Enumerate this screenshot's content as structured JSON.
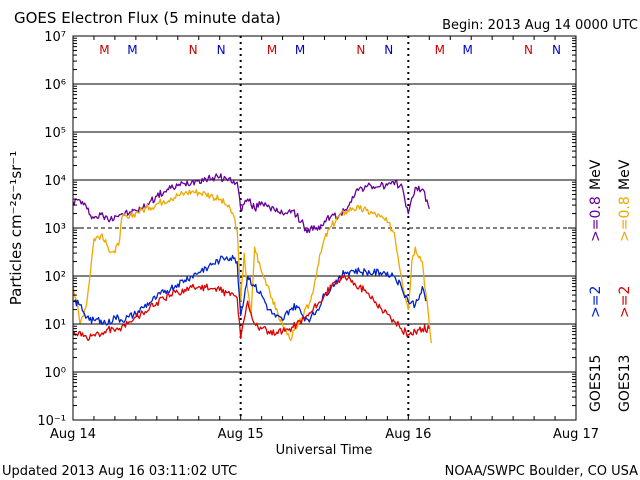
{
  "chart_data": {
    "type": "line",
    "title": "GOES Electron Flux (5 minute data)",
    "begin_label": "Begin: 2013 Aug 14 0000 UTC",
    "xlabel": "Universal Time",
    "ylabel": "Particles cm⁻²s⁻¹sr⁻¹",
    "y_scale": "log",
    "ylim": [
      0.1,
      10000000
    ],
    "y_ticks": [
      {
        "exp": -1,
        "label": "10⁻¹"
      },
      {
        "exp": 0,
        "label": "10⁰"
      },
      {
        "exp": 1,
        "label": "10¹"
      },
      {
        "exp": 2,
        "label": "10²"
      },
      {
        "exp": 3,
        "label": "10³"
      },
      {
        "exp": 4,
        "label": "10⁴"
      },
      {
        "exp": 5,
        "label": "10⁵"
      },
      {
        "exp": 6,
        "label": "10⁶"
      },
      {
        "exp": 7,
        "label": "10⁷"
      }
    ],
    "xlim_hours": [
      0,
      72
    ],
    "x_ticks": [
      {
        "hour": 0,
        "label": "Aug 14"
      },
      {
        "hour": 24,
        "label": "Aug 15"
      },
      {
        "hour": 48,
        "label": "Aug 16"
      },
      {
        "hour": 72,
        "label": "Aug 17"
      }
    ],
    "reference_line": {
      "value": 1000,
      "style": "dashed"
    },
    "day_boundaries_hours": [
      24,
      48
    ],
    "markers": [
      {
        "label": "M",
        "hour": 4.5,
        "color": "#cc0000"
      },
      {
        "label": "M",
        "hour": 8.5,
        "color": "#0000cc"
      },
      {
        "label": "N",
        "hour": 17.2,
        "color": "#cc0000"
      },
      {
        "label": "N",
        "hour": 21.2,
        "color": "#0000cc"
      },
      {
        "label": "M",
        "hour": 28.5,
        "color": "#cc0000"
      },
      {
        "label": "M",
        "hour": 32.5,
        "color": "#0000cc"
      },
      {
        "label": "N",
        "hour": 41.2,
        "color": "#cc0000"
      },
      {
        "label": "N",
        "hour": 45.2,
        "color": "#0000cc"
      },
      {
        "label": "M",
        "hour": 52.5,
        "color": "#cc0000"
      },
      {
        "label": "M",
        "hour": 56.5,
        "color": "#0000cc"
      },
      {
        "label": "N",
        "hour": 65.2,
        "color": "#cc0000"
      },
      {
        "label": "N",
        "hour": 69.2,
        "color": "#0000cc"
      }
    ],
    "legend": {
      "placement": "right",
      "columns": [
        {
          "satellite": "GOES15",
          "entries": [
            {
              "label": ">=2",
              "color": "#0022cc"
            },
            {
              "label": ">=0.8",
              "color": "#660099"
            }
          ]
        },
        {
          "satellite": "GOES13",
          "entries": [
            {
              "label": ">=2",
              "color": "#dd0000"
            },
            {
              "label": ">=0.8",
              "color": "#eea800"
            }
          ]
        },
        {
          "unit": "MeV"
        }
      ]
    },
    "series": [
      {
        "name": "GOES15 >=0.8 MeV",
        "color": "#660099",
        "points": [
          [
            0,
            3500
          ],
          [
            1,
            3800
          ],
          [
            2,
            2500
          ],
          [
            3,
            1600
          ],
          [
            4,
            1900
          ],
          [
            5,
            1500
          ],
          [
            6,
            1800
          ],
          [
            7,
            2000
          ],
          [
            8,
            2000
          ],
          [
            9,
            2300
          ],
          [
            10,
            2600
          ],
          [
            11,
            3500
          ],
          [
            12,
            4600
          ],
          [
            13,
            5600
          ],
          [
            14,
            6700
          ],
          [
            15,
            7600
          ],
          [
            16,
            8400
          ],
          [
            17,
            9200
          ],
          [
            18,
            10100
          ],
          [
            19,
            10600
          ],
          [
            20,
            11200
          ],
          [
            21,
            11400
          ],
          [
            22,
            10500
          ],
          [
            23,
            9500
          ],
          [
            23.5,
            9000
          ],
          [
            24,
            2500
          ],
          [
            25,
            4000
          ],
          [
            26,
            2500
          ],
          [
            27,
            3500
          ],
          [
            28,
            3000
          ],
          [
            29,
            2200
          ],
          [
            30,
            2000
          ],
          [
            31,
            2400
          ],
          [
            32,
            1800
          ],
          [
            33,
            1200
          ],
          [
            33.5,
            800
          ],
          [
            34,
            1000
          ],
          [
            35,
            900
          ],
          [
            36,
            1400
          ],
          [
            37,
            1800
          ],
          [
            38,
            1700
          ],
          [
            39,
            2400
          ],
          [
            40,
            4500
          ],
          [
            41,
            6700
          ],
          [
            42,
            7200
          ],
          [
            43,
            7300
          ],
          [
            44,
            7500
          ],
          [
            45,
            7800
          ],
          [
            46,
            8000
          ],
          [
            47,
            8200
          ],
          [
            48,
            2000
          ],
          [
            49,
            7000
          ],
          [
            50,
            6500
          ],
          [
            51,
            2500
          ]
        ]
      },
      {
        "name": "GOES13 >=0.8 MeV",
        "color": "#eea800",
        "points": [
          [
            0,
            60
          ],
          [
            0.5,
            30
          ],
          [
            1,
            10
          ],
          [
            2,
            30
          ],
          [
            3,
            600
          ],
          [
            4,
            700
          ],
          [
            5,
            400
          ],
          [
            6,
            300
          ],
          [
            6.7,
            600
          ],
          [
            7,
            1700
          ],
          [
            8,
            1600
          ],
          [
            9,
            2100
          ],
          [
            10,
            2400
          ],
          [
            11,
            2700
          ],
          [
            12,
            3200
          ],
          [
            13,
            3700
          ],
          [
            14,
            4200
          ],
          [
            15,
            4800
          ],
          [
            16,
            5300
          ],
          [
            17,
            5800
          ],
          [
            18,
            5500
          ],
          [
            19,
            5200
          ],
          [
            20,
            4600
          ],
          [
            21,
            3900
          ],
          [
            22,
            3000
          ],
          [
            23,
            1800
          ],
          [
            23.5,
            900
          ],
          [
            24,
            30
          ],
          [
            24.5,
            300
          ],
          [
            25,
            50
          ],
          [
            25.5,
            15
          ],
          [
            26,
            400
          ],
          [
            27,
            120
          ],
          [
            28,
            60
          ],
          [
            29,
            20
          ],
          [
            30,
            10
          ],
          [
            31,
            5
          ],
          [
            32,
            8
          ],
          [
            33,
            15
          ],
          [
            34,
            30
          ],
          [
            35,
            150
          ],
          [
            36,
            600
          ],
          [
            37,
            1100
          ],
          [
            38,
            1700
          ],
          [
            39,
            2200
          ],
          [
            40,
            2600
          ],
          [
            41,
            2500
          ],
          [
            42,
            2300
          ],
          [
            43,
            2000
          ],
          [
            44,
            1700
          ],
          [
            45,
            1300
          ],
          [
            46,
            800
          ],
          [
            47,
            100
          ],
          [
            48,
            20
          ],
          [
            48.5,
            200
          ],
          [
            49,
            400
          ],
          [
            50,
            200
          ],
          [
            51,
            10
          ],
          [
            51.3,
            4
          ]
        ]
      },
      {
        "name": "GOES15 >=2 MeV",
        "color": "#0022cc",
        "points": [
          [
            0,
            30
          ],
          [
            1,
            25
          ],
          [
            2,
            14
          ],
          [
            3,
            12
          ],
          [
            4,
            12
          ],
          [
            5,
            10
          ],
          [
            6,
            14
          ],
          [
            7,
            12
          ],
          [
            8,
            14
          ],
          [
            9,
            16
          ],
          [
            10,
            22
          ],
          [
            11,
            28
          ],
          [
            12,
            36
          ],
          [
            13,
            45
          ],
          [
            14,
            55
          ],
          [
            15,
            68
          ],
          [
            16,
            82
          ],
          [
            17,
            100
          ],
          [
            18,
            120
          ],
          [
            19,
            150
          ],
          [
            20,
            180
          ],
          [
            21,
            210
          ],
          [
            22,
            250
          ],
          [
            23,
            230
          ],
          [
            23.5,
            200
          ],
          [
            24,
            15
          ],
          [
            25,
            100
          ],
          [
            26,
            60
          ],
          [
            27,
            40
          ],
          [
            28,
            20
          ],
          [
            29,
            14
          ],
          [
            30,
            12
          ],
          [
            31,
            20
          ],
          [
            32,
            24
          ],
          [
            33,
            14
          ],
          [
            34,
            13
          ],
          [
            35,
            20
          ],
          [
            36,
            40
          ],
          [
            37,
            60
          ],
          [
            38,
            90
          ],
          [
            39,
            120
          ],
          [
            40,
            130
          ],
          [
            41,
            125
          ],
          [
            42,
            120
          ],
          [
            43,
            115
          ],
          [
            44,
            118
          ],
          [
            45,
            120
          ],
          [
            46,
            100
          ],
          [
            47,
            60
          ],
          [
            48,
            30
          ],
          [
            49,
            25
          ],
          [
            50,
            60
          ],
          [
            50.5,
            30
          ]
        ]
      },
      {
        "name": "GOES13 >=2 MeV",
        "color": "#dd0000",
        "points": [
          [
            0,
            6
          ],
          [
            1,
            7
          ],
          [
            2,
            5
          ],
          [
            3,
            6
          ],
          [
            4,
            6
          ],
          [
            5,
            8
          ],
          [
            6,
            7
          ],
          [
            7,
            9
          ],
          [
            8,
            11
          ],
          [
            9,
            14
          ],
          [
            10,
            17
          ],
          [
            11,
            22
          ],
          [
            12,
            28
          ],
          [
            13,
            33
          ],
          [
            14,
            40
          ],
          [
            15,
            46
          ],
          [
            16,
            52
          ],
          [
            17,
            58
          ],
          [
            18,
            60
          ],
          [
            19,
            58
          ],
          [
            20,
            54
          ],
          [
            21,
            50
          ],
          [
            22,
            45
          ],
          [
            23,
            40
          ],
          [
            23.5,
            35
          ],
          [
            24,
            5
          ],
          [
            25,
            30
          ],
          [
            26,
            10
          ],
          [
            27,
            8
          ],
          [
            28,
            7
          ],
          [
            29,
            6
          ],
          [
            30,
            7
          ],
          [
            31,
            8
          ],
          [
            32,
            10
          ],
          [
            33,
            13
          ],
          [
            34,
            17
          ],
          [
            35,
            25
          ],
          [
            36,
            40
          ],
          [
            37,
            60
          ],
          [
            38,
            80
          ],
          [
            39,
            90
          ],
          [
            40,
            80
          ],
          [
            41,
            60
          ],
          [
            42,
            45
          ],
          [
            43,
            32
          ],
          [
            44,
            22
          ],
          [
            45,
            16
          ],
          [
            46,
            11
          ],
          [
            47,
            8
          ],
          [
            48,
            6
          ],
          [
            49,
            7
          ],
          [
            50,
            8
          ],
          [
            51,
            8
          ]
        ]
      }
    ]
  },
  "footer": {
    "updated": "Updated 2013 Aug 16 03:11:02 UTC",
    "credit": "NOAA/SWPC Boulder, CO USA"
  }
}
